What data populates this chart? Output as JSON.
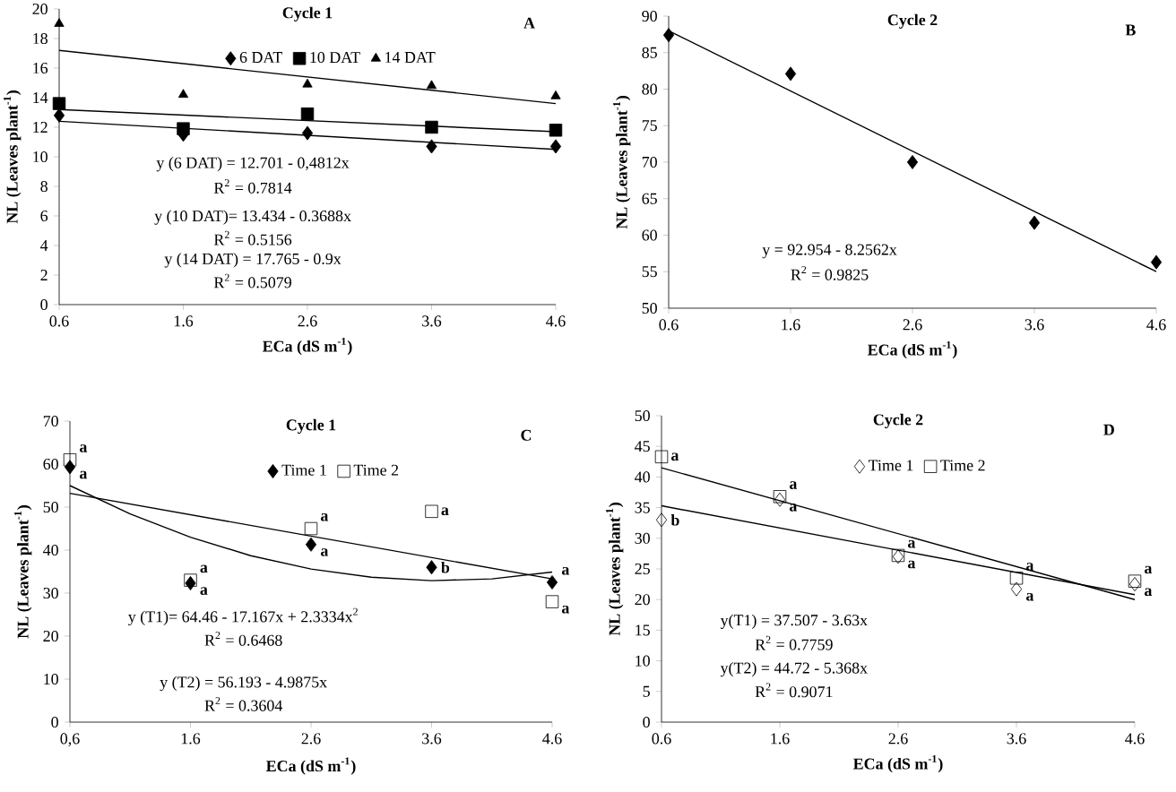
{
  "chart_data": [
    {
      "type": "scatter",
      "title": "Cycle 1",
      "xlabel": "ECa (dS m$^{-1}$)",
      "ylabel": "NL (Leaves plant$^{-1}$)",
      "xlim": [
        0.6,
        4.6
      ],
      "ylim": [
        0,
        20
      ],
      "xticks": [
        0.6,
        1.6,
        2.6,
        3.6,
        4.6
      ],
      "yticks": [
        0,
        2,
        4,
        6,
        8,
        10,
        12,
        14,
        16,
        18,
        20
      ],
      "legend": "top",
      "series": [
        {
          "type": "scatter",
          "name": "6 DAT",
          "color": "#000000",
          "marker": "diamond",
          "x": [
            0.6,
            1.6,
            2.6,
            3.6,
            4.6
          ],
          "values": [
            12.8,
            11.5,
            11.6,
            10.7,
            10.7
          ]
        },
        {
          "type": "scatter",
          "name": "10 DAT",
          "color": "#000000",
          "marker": "square",
          "x": [
            0.6,
            1.6,
            2.6,
            3.6,
            4.6
          ],
          "values": [
            13.6,
            11.9,
            12.9,
            12.0,
            11.8
          ]
        },
        {
          "type": "scatter",
          "name": "14 DAT",
          "color": "#000000",
          "marker": "triangle",
          "x": [
            0.6,
            1.6,
            2.6,
            3.6,
            4.6
          ],
          "values": [
            19.0,
            14.2,
            14.9,
            14.8,
            14.1
          ]
        },
        {
          "type": "line",
          "color": "#000000",
          "x": [
            0.6,
            4.6
          ],
          "values": [
            12.4,
            10.5
          ]
        },
        {
          "type": "line",
          "color": "#000000",
          "x": [
            0.6,
            4.6
          ],
          "values": [
            13.2,
            11.7
          ]
        },
        {
          "type": "line",
          "color": "#000000",
          "x": [
            0.6,
            4.6
          ],
          "values": [
            17.2,
            13.6
          ]
        }
      ],
      "annotations": [
        "A",
        "y (6 DAT) = 12.701 - 0,4812x",
        "R$^{2}$ = 0.7814",
        "y (10 DAT)= 13.434 - 0.3688x",
        "R$^{2}$ = 0.5156",
        "y (14 DAT) = 17.765 - 0.9x",
        "R$^{2}$ = 0.5079"
      ]
    },
    {
      "type": "scatter",
      "title": "Cycle 2",
      "xlabel": "ECa (dS m$^{-1}$)",
      "ylabel": "NL (Leaves plant$^{-1}$)",
      "xlim": [
        0.6,
        4.6
      ],
      "ylim": [
        50,
        90
      ],
      "xticks": [
        0.6,
        1.6,
        2.6,
        3.6,
        4.6
      ],
      "yticks": [
        50,
        55,
        60,
        65,
        70,
        75,
        80,
        85,
        90
      ],
      "series": [
        {
          "type": "scatter",
          "color": "#000000",
          "marker": "diamond",
          "x": [
            0.6,
            1.6,
            2.6,
            3.6,
            4.6
          ],
          "values": [
            87.4,
            82.1,
            70.0,
            61.7,
            56.3
          ]
        },
        {
          "type": "line",
          "color": "#000000",
          "x": [
            0.6,
            4.6
          ],
          "values": [
            88.0,
            55.0
          ]
        }
      ],
      "annotations": [
        "B",
        "y = 92.954 - 8.2562x",
        "R$^{2}$ = 0.9825"
      ]
    },
    {
      "type": "scatter",
      "title": "Cycle 1",
      "xlabel": "ECa (dS m$^{-1}$)",
      "ylabel": "NL (Leaves plant$^{-1}$)",
      "xlim": [
        0.6,
        4.6
      ],
      "ylim": [
        0,
        70
      ],
      "xticks": [
        {
          "value": 0.6,
          "label": "0,6"
        },
        1.6,
        2.6,
        3.6,
        4.6
      ],
      "yticks": [
        0,
        10,
        20,
        30,
        40,
        50,
        60,
        70
      ],
      "legend": "top",
      "series": [
        {
          "type": "scatter",
          "name": "Time 1",
          "color": "#000000",
          "marker": "diamond",
          "x": [
            0.6,
            1.6,
            2.6,
            3.6,
            4.6
          ],
          "values": [
            59.3,
            32.3,
            41.3,
            36.0,
            32.5
          ],
          "value_labels": [
            "a",
            "a",
            "a",
            "b",
            "a"
          ]
        },
        {
          "type": "scatter",
          "name": "Time 2",
          "color": "#000000",
          "marker": "square",
          "x": [
            0.6,
            1.6,
            2.6,
            3.6,
            4.6
          ],
          "values": [
            61.0,
            33.0,
            45.0,
            49.0,
            28.0
          ],
          "value_labels": [
            "a",
            "a",
            "a",
            "a",
            "a"
          ]
        },
        {
          "type": "line",
          "color": "#000000",
          "x": [
            0.6,
            1.1,
            1.6,
            2.1,
            2.6,
            3.1,
            3.6,
            4.1,
            4.6
          ],
          "values": [
            55.0,
            48.4,
            43.0,
            38.7,
            35.6,
            33.7,
            32.9,
            33.3,
            34.9
          ]
        },
        {
          "type": "line",
          "color": "#000000",
          "x": [
            0.6,
            4.6
          ],
          "values": [
            53.2,
            33.3
          ]
        }
      ],
      "annotations": [
        "C",
        "y (T1)= 64.46 - 17.167x + 2.3334x$^{2}$",
        "R$^{2}$ = 0.6468",
        "y (T2) = 56.193 - 4.9875x",
        "R$^{2}$ = 0.3604"
      ]
    },
    {
      "type": "scatter",
      "title": "Cycle 2",
      "xlabel": "ECa (dS m$^{-1}$)",
      "ylabel": "NL (Leaves plant$^{-1}$)",
      "xlim": [
        0.6,
        4.6
      ],
      "ylim": [
        0,
        50
      ],
      "xticks": [
        0.6,
        1.6,
        2.6,
        3.6,
        4.6
      ],
      "yticks": [
        0,
        5,
        10,
        15,
        20,
        25,
        30,
        35,
        40,
        45,
        50
      ],
      "legend": "top",
      "series": [
        {
          "type": "scatter",
          "name": "Time 1",
          "color": "#000000",
          "marker": "diamond",
          "x": [
            0.6,
            1.6,
            2.6,
            3.6,
            4.6
          ],
          "values": [
            33.0,
            36.3,
            27.0,
            21.7,
            22.5
          ],
          "value_labels": [
            "b",
            "a",
            "a",
            "a",
            "a"
          ]
        },
        {
          "type": "scatter",
          "name": "Time 2",
          "color": "#000000",
          "marker": "square",
          "x": [
            0.6,
            1.6,
            2.6,
            3.6,
            4.6
          ],
          "values": [
            43.3,
            36.8,
            27.2,
            23.5,
            23.0
          ],
          "value_labels": [
            "a",
            "a",
            "a",
            "a",
            "a"
          ]
        },
        {
          "type": "line",
          "color": "#000000",
          "x": [
            0.6,
            4.6
          ],
          "values": [
            35.3,
            20.8
          ]
        },
        {
          "type": "line",
          "color": "#000000",
          "x": [
            0.6,
            4.6
          ],
          "values": [
            41.5,
            20.0
          ]
        }
      ],
      "annotations": [
        "D",
        "y(T1) = 37.507 - 3.63x",
        "R$^{2}$ = 0.7759",
        "y(T2) = 44.72 - 5.368x",
        "R$^{2}$ = 0.9071"
      ]
    }
  ]
}
